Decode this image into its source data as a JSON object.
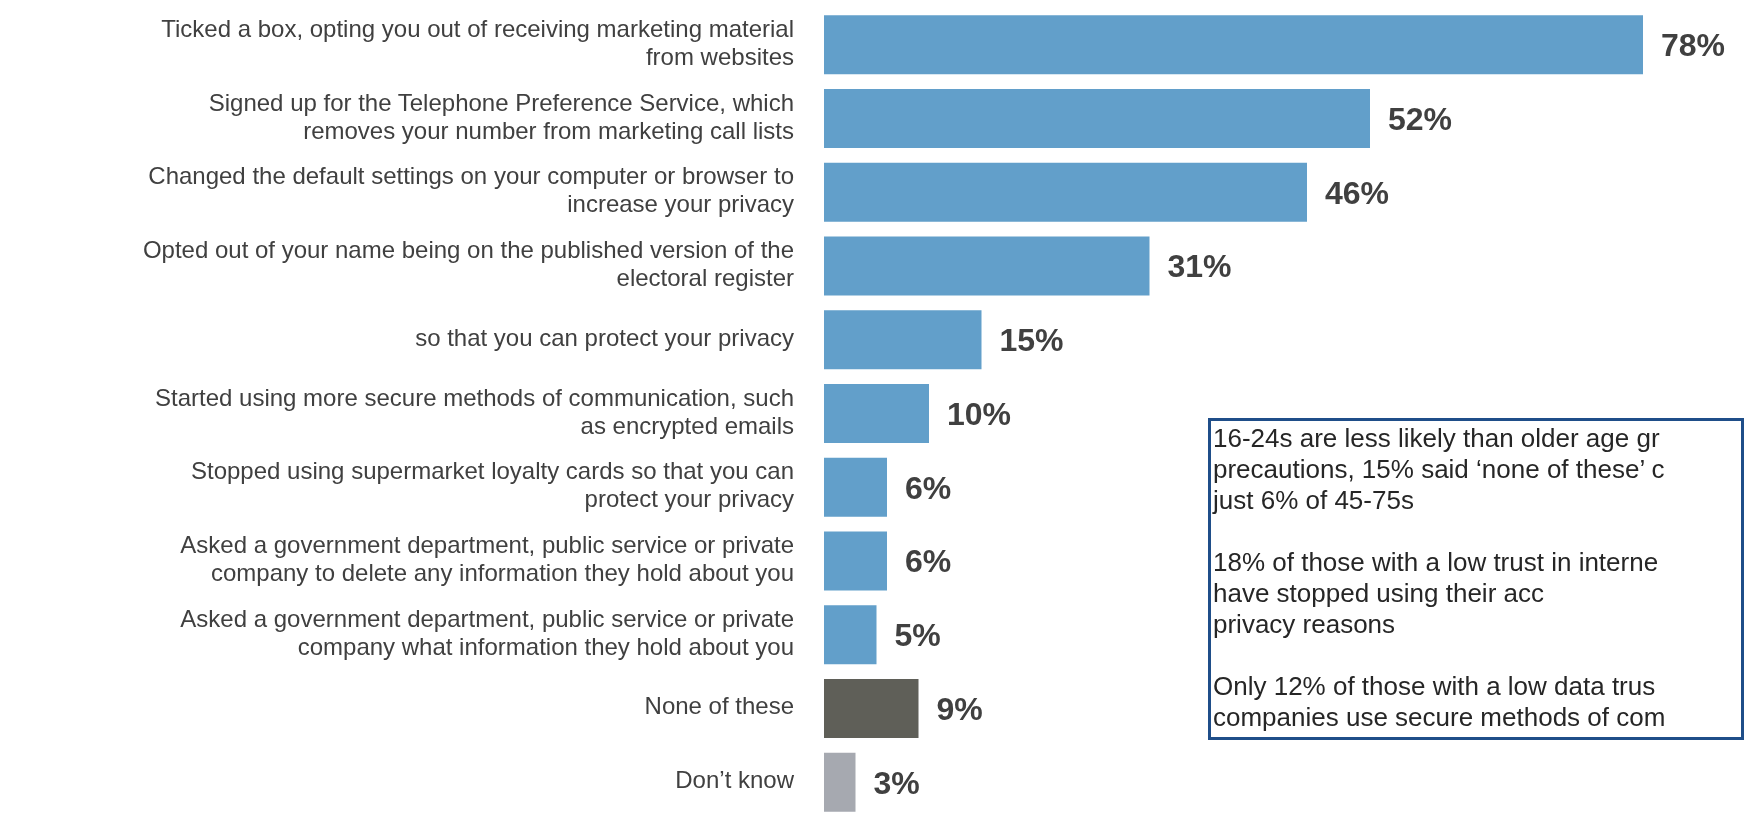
{
  "chart_data": {
    "type": "bar",
    "orientation": "horizontal",
    "categories": [
      "Ticked a box, opting you out of receiving marketing material from websites",
      "Signed up for the Telephone Preference Service, which removes your number from marketing call lists",
      "Changed the default settings on your computer or browser to increase your privacy",
      "Opted out of your name being on the published version of the electoral register",
      "so that you can protect your privacy",
      "Started using more secure methods of communication, such as encrypted emails",
      "Stopped using supermarket loyalty cards so that you can protect your privacy",
      "Asked a government department, public service or private company to delete any information they hold about you",
      "Asked a government department, public service or private company what information they hold about you",
      "None of these",
      "Don’t know"
    ],
    "values": [
      78,
      52,
      46,
      31,
      15,
      10,
      6,
      6,
      5,
      9,
      3
    ],
    "colors": [
      "#629fca",
      "#629fca",
      "#629fca",
      "#629fca",
      "#629fca",
      "#629fca",
      "#629fca",
      "#629fca",
      "#629fca",
      "#5f5f58",
      "#a6a9b0"
    ],
    "value_labels": [
      "78%",
      "52%",
      "46%",
      "31%",
      "15%",
      "10%",
      "6%",
      "6%",
      "5%",
      "9%",
      "3%"
    ],
    "annotations": [
      "16-24s are less likely than older age gr\nprecautions, 15% said ‘none of these’ c\njust 6% of 45-75s",
      "18% of those with a low trust in interne\nhave stopped using their acc\nprivacy reasons",
      "Only 12% of those with a low data trus\ncompanies use secure methods of com"
    ]
  }
}
